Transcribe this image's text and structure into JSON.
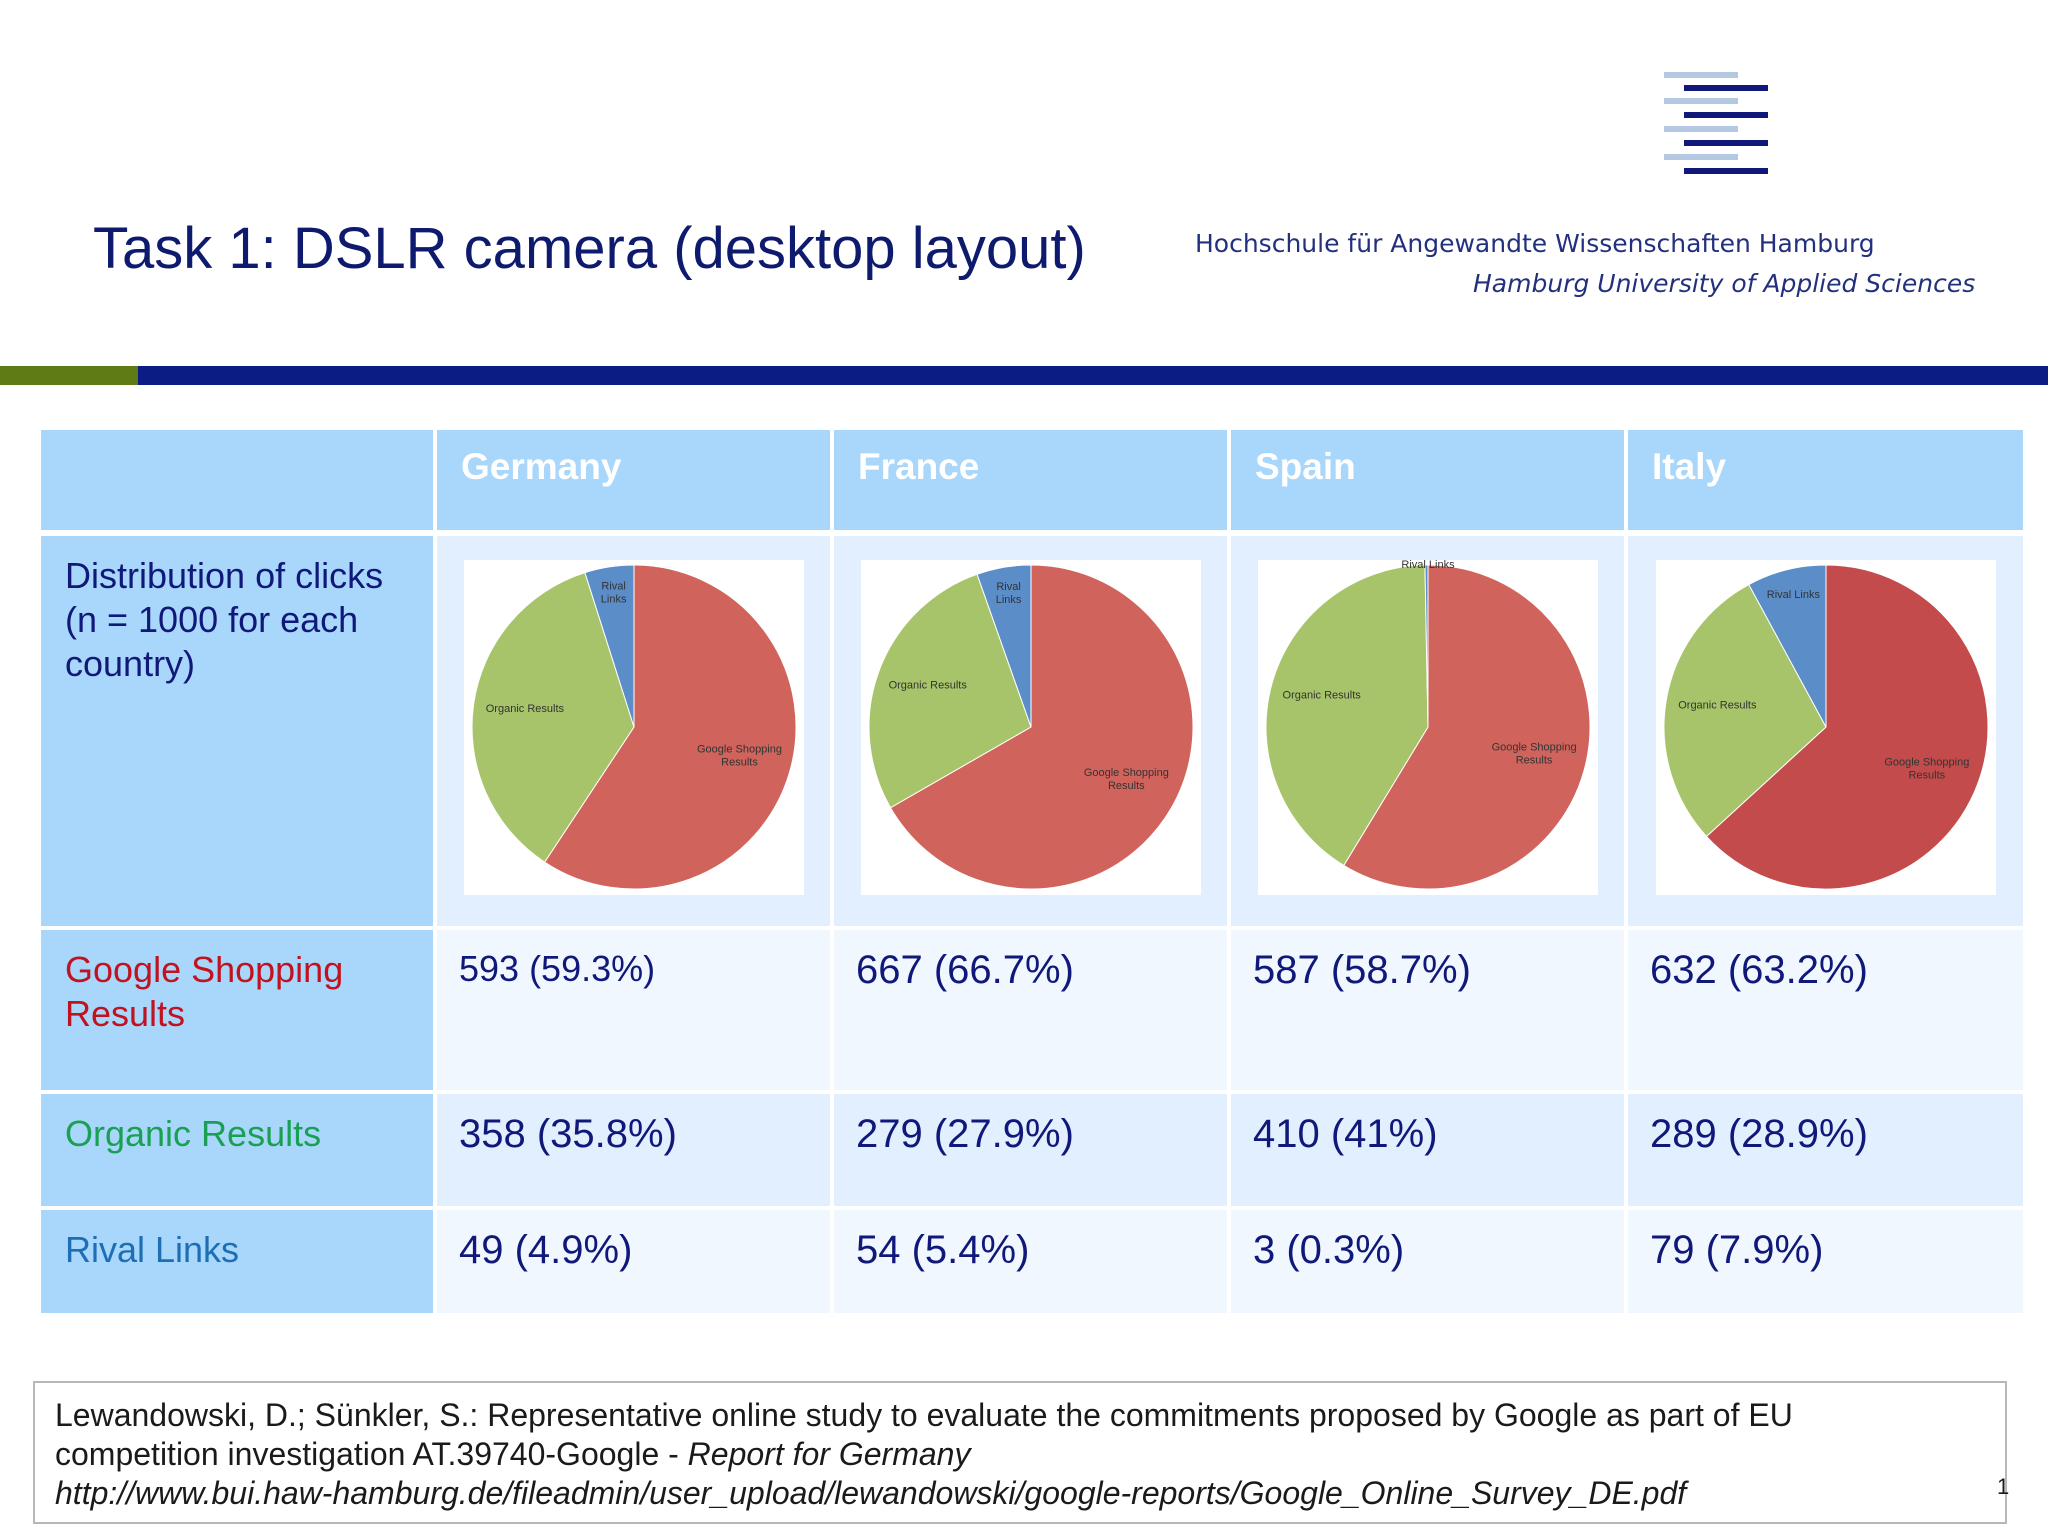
{
  "slide": {
    "title": "Task 1: DSLR camera (desktop layout)",
    "institution_de": "Hochschule für Angewandte Wissenschaften Hamburg",
    "institution_en": "Hamburg University of Applied Sciences",
    "page_number": "1"
  },
  "colors": {
    "google_shopping": "#d0645c",
    "google_shopping_dark": "#c44b4b",
    "organic": "#a7c46a",
    "rival": "#5b8dc9",
    "header_bg": "#a9d6fb",
    "rule_blue": "#0b1d84",
    "rule_green": "#5e7b16"
  },
  "table": {
    "corner": "",
    "countries": [
      "Germany",
      "France",
      "Spain",
      "Italy"
    ],
    "row_labels": {
      "distribution": "Distribution of clicks (n = 1000 for each country)",
      "google_shopping": "Google Shopping Results",
      "organic": "Organic Results",
      "rival": "Rival Links"
    },
    "google_shopping": [
      "593 (59.3%)",
      "667 (66.7%)",
      "587 (58.7%)",
      "632 (63.2%)"
    ],
    "organic": [
      "358 (35.8%)",
      "279 (27.9%)",
      "410 (41%)",
      "289 (28.9%)"
    ],
    "rival": [
      "49 (4.9%)",
      "54 (5.4%)",
      "3 (0.3%)",
      "79 (7.9%)"
    ]
  },
  "chart_data": [
    {
      "type": "pie",
      "country": "Germany",
      "labels": [
        "Google Shopping Results",
        "Organic Results",
        "Rival Links"
      ],
      "values": [
        593,
        358,
        49
      ]
    },
    {
      "type": "pie",
      "country": "France",
      "labels": [
        "Google Shopping Results",
        "Organic Results",
        "Rival Links"
      ],
      "values": [
        667,
        279,
        54
      ]
    },
    {
      "type": "pie",
      "country": "Spain",
      "labels": [
        "Google Shopping Results",
        "Organic Results",
        "Rival Links"
      ],
      "values": [
        587,
        410,
        3
      ]
    },
    {
      "type": "pie",
      "country": "Italy",
      "labels": [
        "Google Shopping Results",
        "Organic Results",
        "Rival Links"
      ],
      "values": [
        632,
        289,
        79
      ]
    }
  ],
  "citation": {
    "line1": "Lewandowski, D.; Sünkler, S.: Representative online study to evaluate the commitments proposed by Google as part of EU",
    "line2_plain": "competition investigation AT.39740-Google - ",
    "line2_italic": "Report for Germany",
    "line3": "http://www.bui.haw-hamburg.de/fileadmin/user_upload/lewandowski/google-reports/Google_Online_Survey_DE.pdf"
  }
}
